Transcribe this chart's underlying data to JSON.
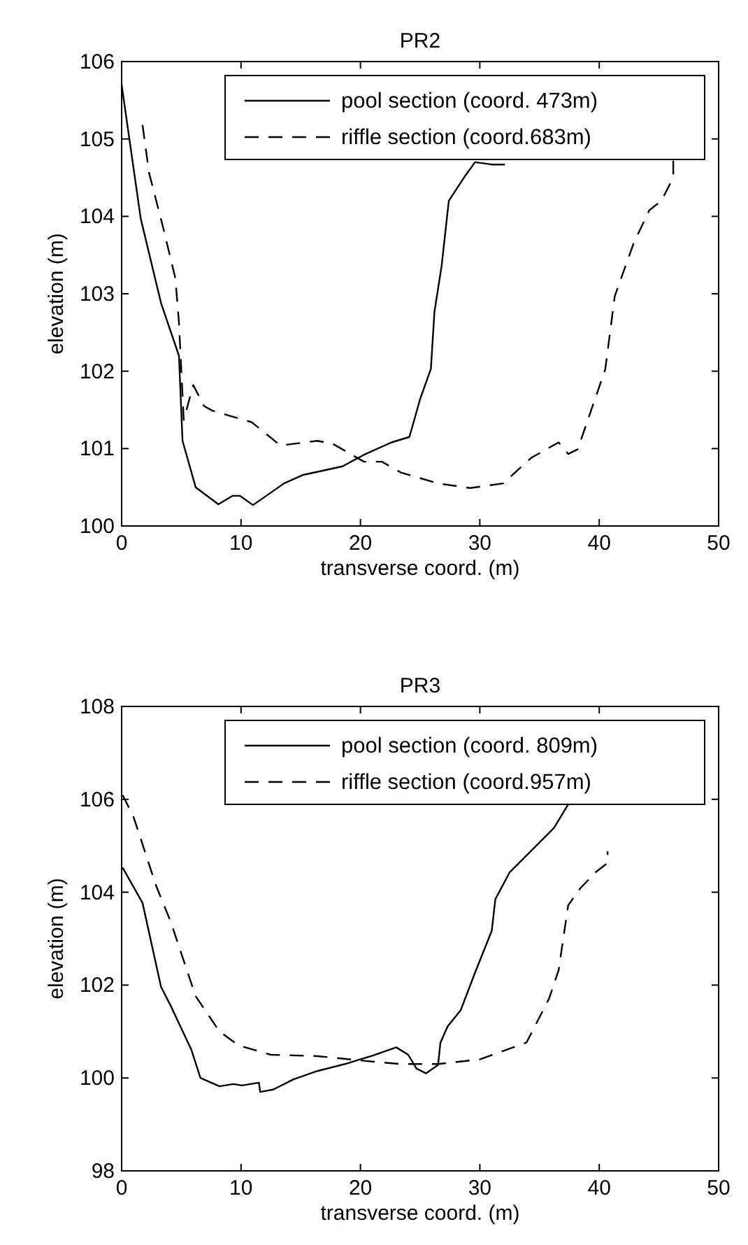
{
  "chart_data": [
    {
      "type": "line",
      "title": "PR2",
      "xlabel": "transverse coord. (m)",
      "ylabel": "elevation (m)",
      "xlim": [
        0,
        50
      ],
      "ylim": [
        100,
        106
      ],
      "xticks": [
        0,
        10,
        20,
        30,
        40,
        50
      ],
      "yticks": [
        100,
        101,
        102,
        103,
        104,
        105,
        106
      ],
      "legend": "top right",
      "grid": false,
      "series": [
        {
          "name": "pool section (coord. 473m)",
          "color": "#000000",
          "line_style": "solid",
          "x": [
            0,
            1.6,
            3.3,
            4.8,
            5.1,
            6.2,
            8.1,
            9.3,
            9.9,
            11,
            13.6,
            15.2,
            18.5,
            20.3,
            22.6,
            24.1,
            25,
            25.9,
            26.2,
            26.8,
            27.4,
            28.8,
            29.6,
            31,
            32.1
          ],
          "values": [
            105.7,
            103.97,
            102.88,
            102.2,
            101.1,
            100.5,
            100.28,
            100.39,
            100.39,
            100.27,
            100.55,
            100.66,
            100.77,
            100.92,
            101.08,
            101.15,
            101.64,
            102.03,
            102.77,
            103.36,
            104.2,
            104.53,
            104.7,
            104.67,
            104.67
          ]
        },
        {
          "name": "riffle section (coord.683m)",
          "color": "#000000",
          "line_style": "dashed",
          "x": [
            1.75,
            2.3,
            3.5,
            4.5,
            4.8,
            5.2,
            6,
            6.9,
            7.6,
            10.9,
            13.3,
            16.4,
            17.7,
            20.3,
            21.8,
            23.4,
            26.5,
            29.2,
            31.95,
            34.3,
            36.6,
            37.4,
            38.2,
            39.4,
            40.5,
            41.3,
            42.9,
            44.2,
            45.2,
            46.2,
            46.2
          ],
          "values": [
            105.18,
            104.56,
            103.84,
            103.2,
            102.63,
            101.37,
            101.82,
            101.55,
            101.49,
            101.34,
            101.04,
            101.1,
            101.06,
            100.83,
            100.83,
            100.69,
            100.55,
            100.49,
            100.55,
            100.88,
            101.08,
            100.93,
            100.99,
            101.53,
            102.02,
            102.97,
            103.66,
            104.08,
            104.2,
            104.5,
            104.72
          ]
        }
      ]
    },
    {
      "type": "line",
      "title": "PR3",
      "xlabel": "transverse coord. (m)",
      "ylabel": "elevation (m)",
      "xlim": [
        0,
        50
      ],
      "ylim": [
        98,
        108
      ],
      "xticks": [
        0,
        10,
        20,
        30,
        40,
        50
      ],
      "yticks": [
        98,
        100,
        102,
        104,
        106,
        108
      ],
      "legend": "top right",
      "grid": false,
      "series": [
        {
          "name": "pool section (coord. 809m)",
          "color": "#000000",
          "line_style": "solid",
          "x": [
            0.08,
            1.75,
            3.3,
            4.1,
            5.85,
            6.6,
            8.2,
            9.35,
            10.1,
            11.5,
            11.6,
            12.7,
            14.4,
            16.4,
            18.7,
            21,
            23,
            24,
            24.7,
            25.5,
            26.5,
            26.7,
            27.3,
            28.4,
            29.6,
            31,
            31.3,
            32.5,
            36.2,
            37.4
          ],
          "values": [
            104.53,
            103.77,
            101.96,
            101.56,
            100.6,
            100,
            99.82,
            99.87,
            99.84,
            99.9,
            99.7,
            99.75,
            99.97,
            100.15,
            100.3,
            100.48,
            100.66,
            100.5,
            100.2,
            100.1,
            100.28,
            100.76,
            101.11,
            101.46,
            102.27,
            103.17,
            103.85,
            104.43,
            105.38,
            105.89
          ]
        },
        {
          "name": "riffle section (coord.957m)",
          "color": "#000000",
          "line_style": "dashed",
          "x": [
            0.08,
            0.97,
            2.9,
            4.1,
            6.2,
            8.2,
            9.8,
            12.5,
            16.4,
            20.3,
            23.4,
            26.5,
            30,
            33.9,
            35.8,
            36.6,
            37.4,
            38.4,
            39.7,
            40.7,
            40.7
          ],
          "values": [
            106.09,
            105.64,
            104.13,
            103.37,
            101.76,
            101,
            100.7,
            100.5,
            100.47,
            100.37,
            100.3,
            100.3,
            100.4,
            100.76,
            101.71,
            102.32,
            103.72,
            104.08,
            104.43,
            104.63,
            104.88
          ]
        }
      ]
    }
  ]
}
